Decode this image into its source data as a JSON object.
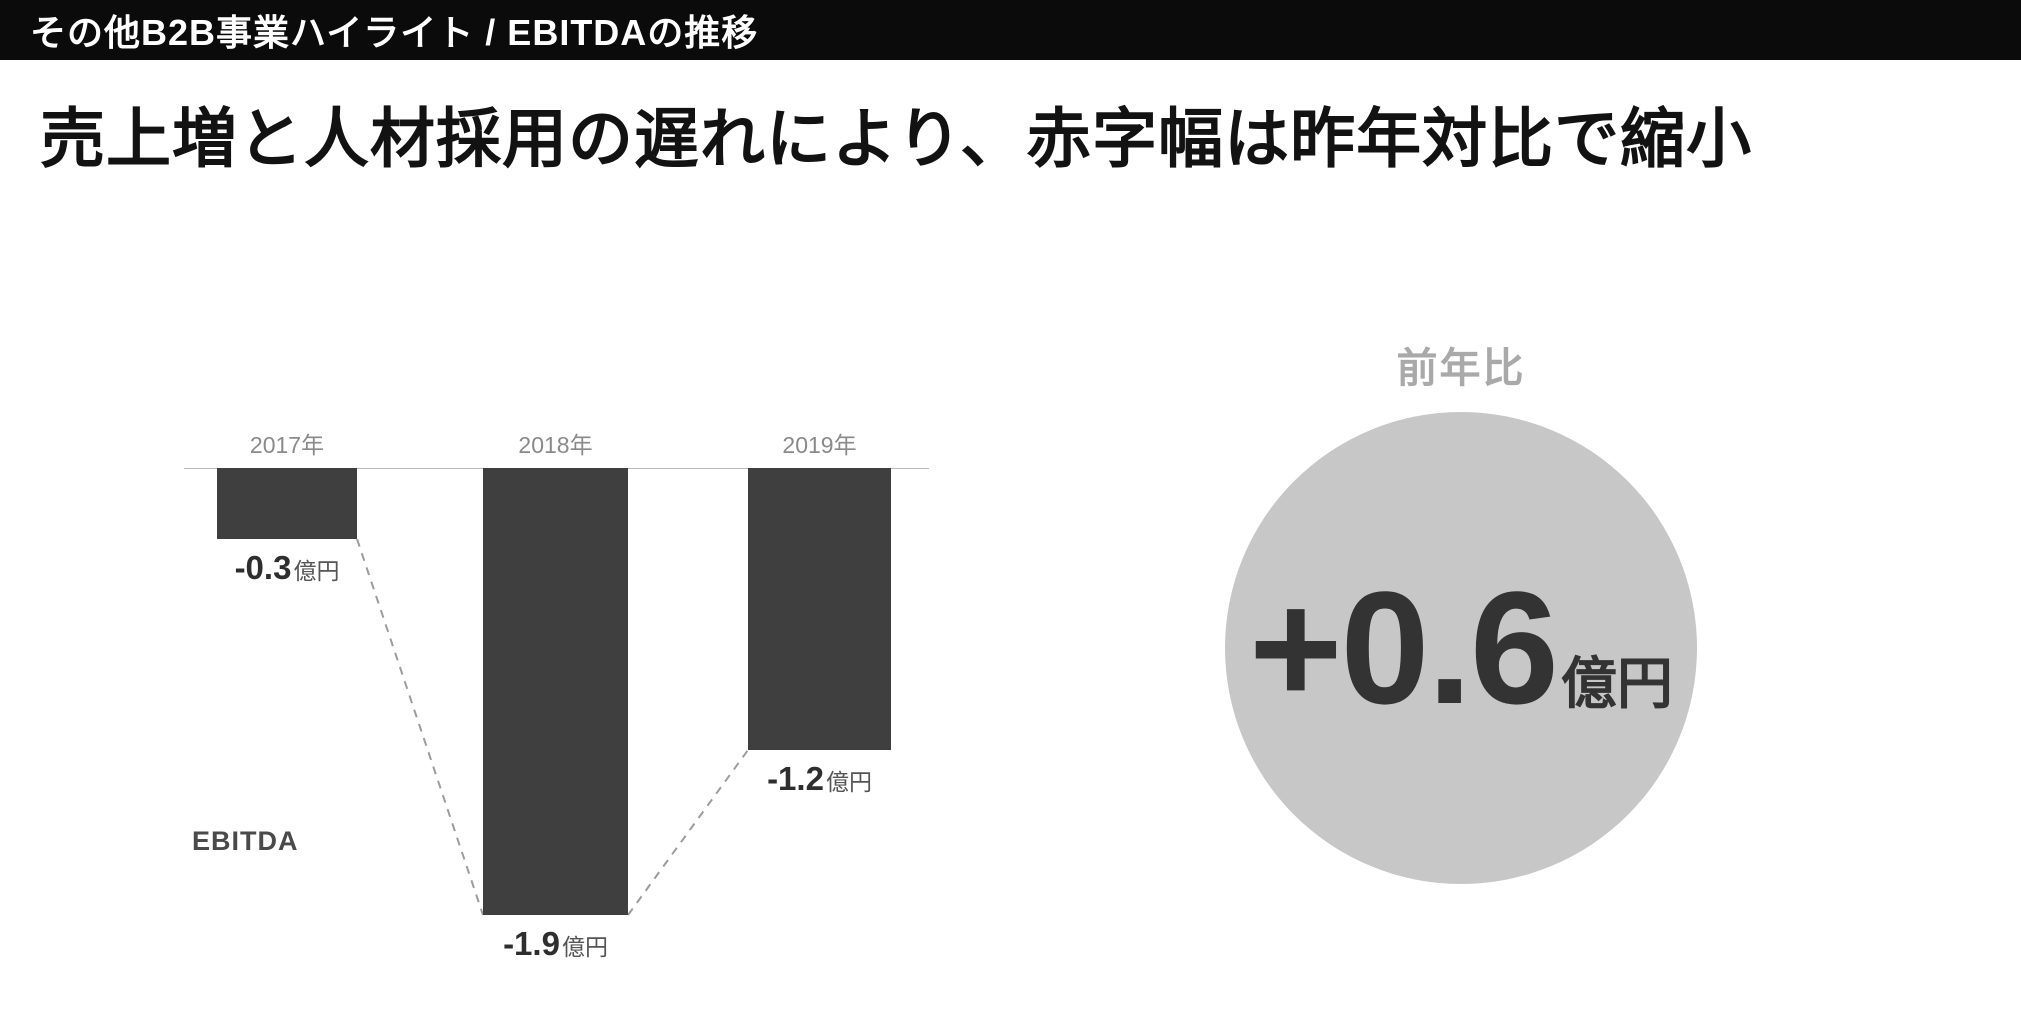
{
  "header": {
    "title": "その他B2B事業ハイライト / EBITDAの推移"
  },
  "headline": "売上増と人材採用の遅れにより、赤字幅は昨年対比で縮小",
  "chart_data": {
    "type": "bar",
    "title": "EBITDAの推移",
    "series_label": "EBITDA",
    "categories": [
      "2017年",
      "2018年",
      "2019年"
    ],
    "values": [
      -0.3,
      -1.9,
      -1.2
    ],
    "unit": "億円",
    "value_labels": [
      {
        "number": "-0.3",
        "unit": "億円"
      },
      {
        "number": "-1.9",
        "unit": "億円"
      },
      {
        "number": "-1.2",
        "unit": "億円"
      }
    ],
    "baseline": 0,
    "ylim": [
      -2.0,
      0
    ],
    "grid": false,
    "legend_position": "none",
    "bar_direction": "down-from-zero",
    "connector_style": "dashed-between-bar-bottoms"
  },
  "yoy": {
    "label": "前年比",
    "value": "+0.6",
    "unit": "億円"
  },
  "colors": {
    "topbar_bg": "#0b0b0b",
    "bar": "#3f3f3f",
    "circle": "#c7c7c7",
    "dashed_line": "#9c9c9c",
    "category_label": "#8a8a8a",
    "yoy_label": "#a9a9a9"
  }
}
